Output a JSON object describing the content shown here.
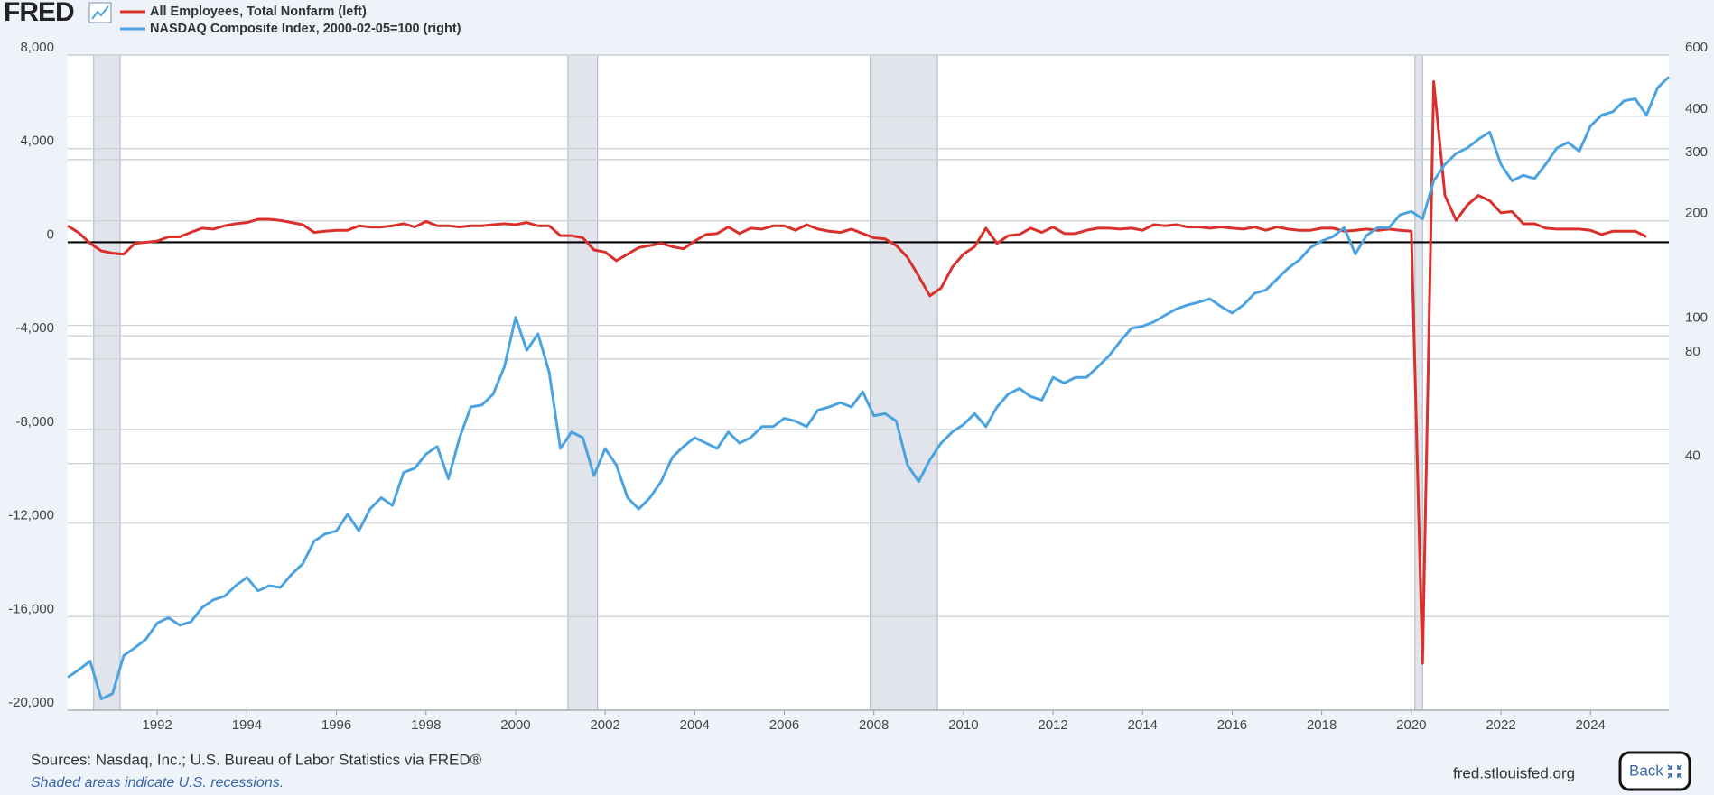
{
  "header": {
    "logo": "FRED"
  },
  "chart_data": {
    "type": "line",
    "x": [
      1990,
      1990.25,
      1990.5,
      1990.75,
      1991,
      1991.25,
      1991.5,
      1991.75,
      1992,
      1992.25,
      1992.5,
      1992.75,
      1993,
      1993.25,
      1993.5,
      1993.75,
      1994,
      1994.25,
      1994.5,
      1994.75,
      1995,
      1995.25,
      1995.5,
      1995.75,
      1996,
      1996.25,
      1996.5,
      1996.75,
      1997,
      1997.25,
      1997.5,
      1997.75,
      1998,
      1998.25,
      1998.5,
      1998.75,
      1999,
      1999.25,
      1999.5,
      1999.75,
      2000,
      2000.25,
      2000.5,
      2000.75,
      2001,
      2001.25,
      2001.5,
      2001.75,
      2002,
      2002.25,
      2002.5,
      2002.75,
      2003,
      2003.25,
      2003.5,
      2003.75,
      2004,
      2004.25,
      2004.5,
      2004.75,
      2005,
      2005.25,
      2005.5,
      2005.75,
      2006,
      2006.25,
      2006.5,
      2006.75,
      2007,
      2007.25,
      2007.5,
      2007.75,
      2008,
      2008.25,
      2008.5,
      2008.75,
      2009,
      2009.25,
      2009.5,
      2009.75,
      2010,
      2010.25,
      2010.5,
      2010.75,
      2011,
      2011.25,
      2011.5,
      2011.75,
      2012,
      2012.25,
      2012.5,
      2012.75,
      2013,
      2013.25,
      2013.5,
      2013.75,
      2014,
      2014.25,
      2014.5,
      2014.75,
      2015,
      2015.25,
      2015.5,
      2015.75,
      2016,
      2016.25,
      2016.5,
      2016.75,
      2017,
      2017.25,
      2017.5,
      2017.75,
      2018,
      2018.25,
      2018.5,
      2018.75,
      2019,
      2019.25,
      2019.5,
      2019.75,
      2020,
      2020.25,
      2020.5,
      2020.75,
      2021,
      2021.25,
      2021.5,
      2021.75,
      2022,
      2022.25,
      2022.5,
      2022.75,
      2023,
      2023.25,
      2023.5,
      2023.75,
      2024,
      2024.25,
      2024.5,
      2024.75,
      2025,
      2025.25,
      2025.5,
      2025.75
    ],
    "series": [
      {
        "name": "All Employees, Total Nonfarm (left)",
        "color": "#d9302c",
        "values": [
          700,
          400,
          -50,
          -370,
          -470,
          -510,
          -50,
          0,
          50,
          230,
          230,
          420,
          600,
          560,
          700,
          790,
          840,
          980,
          980,
          930,
          840,
          750,
          420,
          470,
          510,
          510,
          700,
          650,
          650,
          700,
          790,
          650,
          890,
          700,
          700,
          650,
          700,
          700,
          750,
          790,
          750,
          840,
          700,
          700,
          280,
          280,
          190,
          -330,
          -420,
          -790,
          -510,
          -230,
          -140,
          -50,
          -190,
          -280,
          50,
          330,
          370,
          650,
          370,
          600,
          560,
          700,
          700,
          510,
          750,
          560,
          470,
          420,
          560,
          370,
          190,
          140,
          -140,
          -650,
          -1450,
          -2290,
          -1960,
          -1070,
          -510,
          -190,
          600,
          -50,
          280,
          330,
          600,
          420,
          650,
          370,
          370,
          510,
          600,
          600,
          560,
          600,
          510,
          750,
          700,
          750,
          650,
          650,
          600,
          650,
          600,
          560,
          650,
          510,
          650,
          560,
          510,
          510,
          600,
          600,
          470,
          510,
          560,
          510,
          560,
          510,
          470,
          -18000,
          6860,
          2000,
          930,
          1590,
          2000,
          1770,
          1260,
          1310,
          790,
          790,
          600,
          560,
          560,
          560,
          510,
          330,
          470,
          470,
          470,
          230,
          null,
          null
        ]
      },
      {
        "name": "NASDAQ Composite Index, 2000-02-05=100 (right)",
        "color": "#4ba3e0",
        "axis": "y2",
        "values": [
          9.7,
          10.2,
          10.8,
          8.4,
          8.7,
          11.2,
          11.8,
          12.5,
          13.9,
          14.4,
          13.7,
          14.0,
          15.4,
          16.2,
          16.6,
          17.8,
          18.8,
          17.2,
          17.8,
          17.6,
          19.2,
          20.6,
          23.9,
          25.1,
          25.6,
          28.6,
          25.6,
          29.6,
          31.9,
          30.3,
          37.7,
          38.8,
          42.6,
          44.8,
          36.2,
          47.5,
          58.2,
          59.0,
          63.4,
          76.0,
          105.4,
          84.8,
          94.5,
          73.3,
          44.2,
          49.3,
          47.5,
          36.9,
          44.2,
          39.6,
          31.9,
          29.6,
          31.9,
          35.5,
          41.7,
          44.8,
          47.5,
          45.8,
          44.2,
          49.3,
          45.8,
          47.5,
          51.1,
          51.1,
          54.0,
          53.0,
          51.1,
          57.0,
          58.2,
          59.9,
          58.2,
          64.4,
          54.9,
          55.7,
          53.0,
          39.6,
          35.5,
          41.0,
          45.8,
          49.3,
          51.8,
          55.7,
          51.1,
          58.2,
          63.4,
          65.8,
          62.4,
          60.9,
          70.8,
          68.2,
          70.8,
          70.8,
          76.0,
          81.7,
          89.9,
          98.0,
          99.4,
          102.3,
          106.9,
          111.4,
          114.4,
          116.6,
          119.2,
          113.3,
          108.5,
          114.4,
          123.6,
          126.3,
          135.8,
          146.1,
          154.2,
          167.5,
          175.0,
          180.0,
          191.0,
          160.4,
          181.5,
          191.0,
          191.0,
          208.2,
          212.8,
          202.3,
          260.7,
          290.8,
          312.5,
          324.2,
          343.4,
          360.1,
          290.8,
          260.7,
          270.3,
          264.5,
          290.8,
          324.2,
          336.3,
          317.1,
          374.8,
          402.8,
          412.0,
          442.9,
          449.1,
          402.8,
          483.0,
          519.3
        ]
      }
    ],
    "xlim": [
      1990,
      2025.75
    ],
    "xticks": [
      1992,
      1994,
      1996,
      1998,
      2000,
      2002,
      2004,
      2006,
      2008,
      2010,
      2012,
      2014,
      2016,
      2018,
      2020,
      2022,
      2024
    ],
    "ylim": [
      -20000,
      8000
    ],
    "yticks": [
      {
        "value": 8000,
        "label": "8,000"
      },
      {
        "value": 4000,
        "label": "4,000"
      },
      0,
      {
        "value": -4000,
        "label": "-4,000"
      },
      {
        "value": -8000,
        "label": "-8,000"
      },
      {
        "value": -12000,
        "label": "-12,000"
      },
      {
        "value": -16000,
        "label": "-16,000"
      },
      {
        "value": -20000,
        "label": "-20,000"
      }
    ],
    "y2lim": [
      7.8,
      600
    ],
    "y2ticks": [
      40,
      80,
      100,
      200,
      300,
      400,
      600
    ],
    "y2log": true,
    "grid": true,
    "recessions": [
      [
        1990.58,
        1991.17
      ],
      [
        2001.17,
        2001.83
      ],
      [
        2007.92,
        2009.42
      ],
      [
        2020.08,
        2020.25
      ]
    ]
  },
  "footer": {
    "sources": "Sources: Nasdaq, Inc.; U.S. Bureau of Labor Statistics via FRED®",
    "note": "Shaded areas indicate U.S. recessions.",
    "url": "fred.stlouisfed.org",
    "button": "Back"
  }
}
